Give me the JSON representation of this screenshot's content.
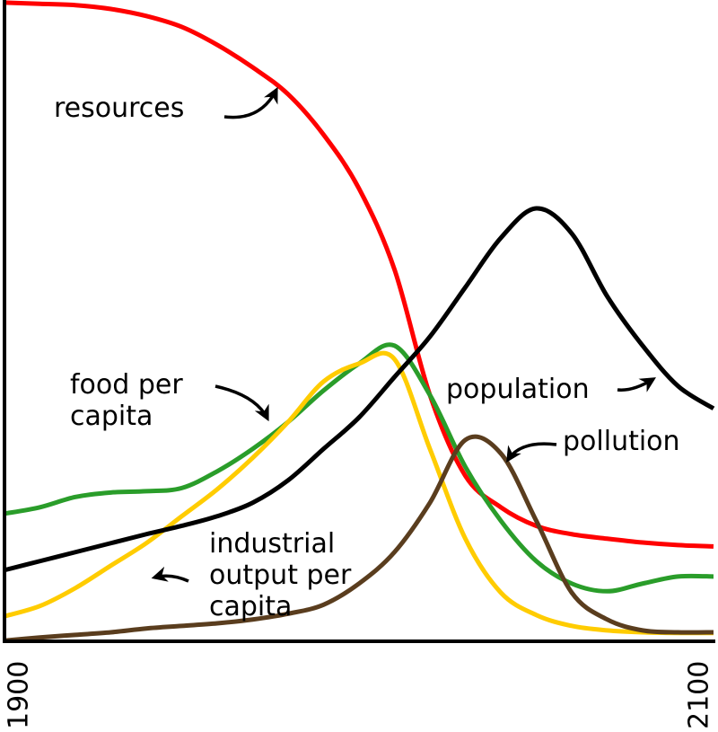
{
  "chart_data": {
    "type": "line",
    "x": [
      1900,
      1910,
      1920,
      1930,
      1940,
      1950,
      1960,
      1970,
      1980,
      1990,
      2000,
      2010,
      2020,
      2030,
      2040,
      2050,
      2060,
      2070,
      2080,
      2090,
      2100
    ],
    "xlim": [
      1900,
      2100
    ],
    "xticks": [
      1900,
      2100
    ],
    "ylim": [
      0,
      100
    ],
    "grid": false,
    "series": [
      {
        "name": [
          "resources"
        ],
        "color": "#ff0000",
        "values": [
          99.6,
          99.4,
          99.2,
          98.6,
          97.5,
          95.8,
          93,
          89.5,
          85.3,
          79,
          70.6,
          58,
          38.4,
          25.8,
          20.9,
          18,
          16.7,
          16,
          15.4,
          15,
          14.8
        ]
      },
      {
        "name": [
          "food per",
          "capita"
        ],
        "color": "#2a9d2a",
        "values": [
          19.9,
          20.9,
          22.5,
          23.2,
          23.4,
          23.9,
          26.5,
          30,
          34.2,
          39.1,
          43.3,
          46.1,
          38.4,
          27.2,
          18.8,
          12.5,
          9,
          7.8,
          9,
          10.1,
          10.1
        ]
      },
      {
        "name": [
          "industrial",
          "output per",
          "capita"
        ],
        "color": "#ffcc00",
        "values": [
          3.9,
          5.5,
          8.3,
          11.8,
          15.3,
          19.5,
          23.7,
          28.6,
          34.2,
          40.5,
          43.3,
          44,
          30,
          16,
          7.6,
          4.1,
          2.4,
          1.7,
          1.4,
          1.3,
          1.3
        ]
      },
      {
        "name": [
          "pollution"
        ],
        "color": "#5a3d1e",
        "values": [
          0.1,
          0.6,
          1,
          1.4,
          2,
          2.4,
          2.8,
          3.4,
          4.3,
          5.7,
          9,
          13.9,
          21.6,
          31.4,
          29.3,
          18.8,
          7.6,
          3.4,
          1.7,
          1.4,
          1.4
        ]
      },
      {
        "name": [
          "population"
        ],
        "color": "#000000",
        "values": [
          11.1,
          12.5,
          13.9,
          15.3,
          16.7,
          18,
          19.5,
          21.6,
          25.1,
          30,
          34.9,
          41.2,
          47.5,
          55.2,
          62.9,
          67.5,
          63.6,
          53.8,
          46.1,
          39.8,
          36.3
        ]
      }
    ]
  }
}
